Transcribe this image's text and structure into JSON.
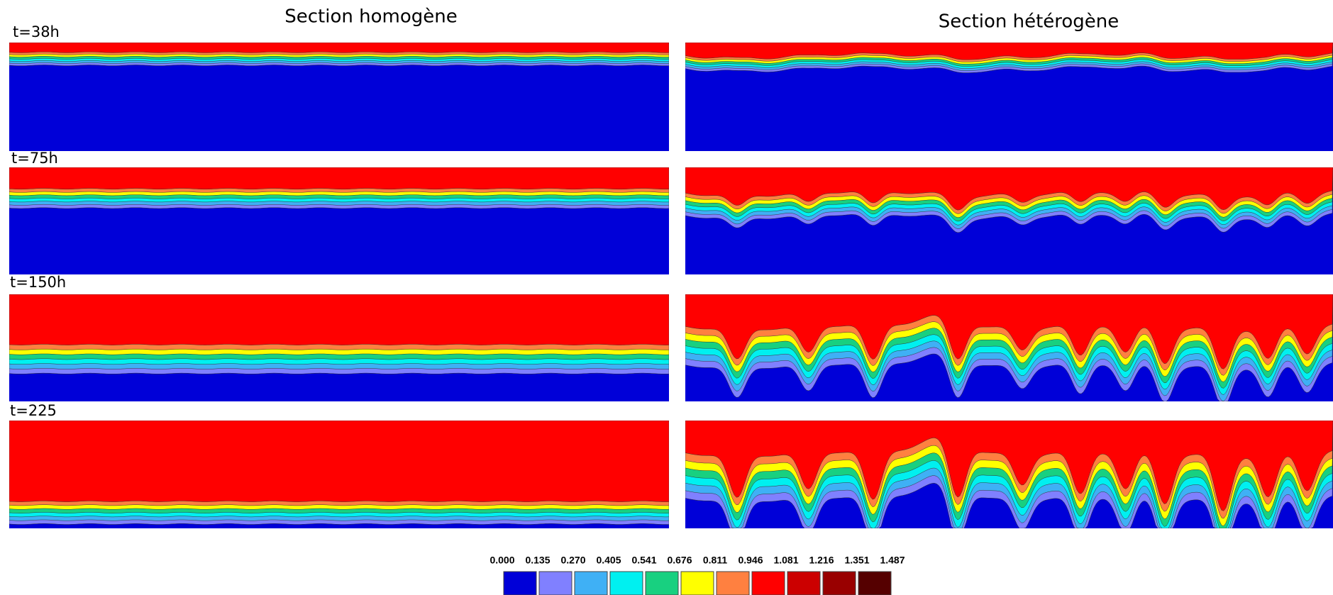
{
  "titles": {
    "homogeneous": "Section homogène",
    "heterogeneous": "Section hétérogène"
  },
  "rows": [
    {
      "label": "t=38h"
    },
    {
      "label": "t=75h"
    },
    {
      "label": "t=150h"
    },
    {
      "label": "t=225"
    }
  ],
  "colorbar": {
    "labels": [
      "0.000",
      "0.135",
      "0.270",
      "0.405",
      "0.541",
      "0.676",
      "0.811",
      "0.946",
      "1.081",
      "1.216",
      "1.351",
      "1.487"
    ],
    "colors": [
      "#0000d8",
      "#8080ff",
      "#3fb0f5",
      "#00f0f0",
      "#18d080",
      "#ffff00",
      "#ff8040",
      "#ff0000",
      "#cc0000",
      "#990000",
      "#550000"
    ]
  }
}
